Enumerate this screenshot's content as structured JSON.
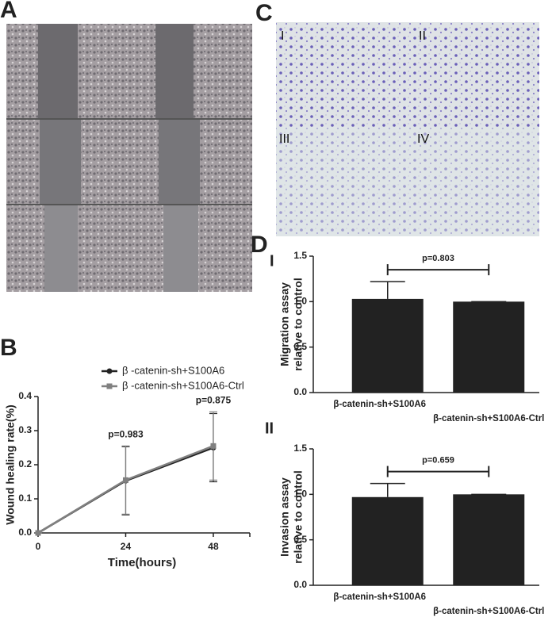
{
  "panel_labels": {
    "a": "A",
    "b": "B",
    "c": "C",
    "d": "D",
    "d1": "I",
    "d2": "II"
  },
  "image_c_labels": [
    "I",
    "II",
    "III",
    "IV"
  ],
  "chart_data": [
    {
      "type": "line",
      "xlabel": "Time(hours)",
      "ylabel": "Wound healing rate(%)",
      "x": [
        0,
        24,
        48
      ],
      "xlim": [
        0,
        58
      ],
      "xticks": [
        0,
        24,
        48
      ],
      "ylim": [
        0,
        0.4
      ],
      "yticks": [
        {
          "value": 0,
          "label": "0.0"
        },
        0.1,
        0.2,
        0.3,
        0.4
      ],
      "series": [
        {
          "name": "β -catenin-sh+S100A6",
          "color": "#222222",
          "marker": "circle",
          "values": [
            0,
            0.153,
            0.25
          ],
          "errors": [
            0,
            0.1,
            0.1
          ]
        },
        {
          "name": "β -catenin-sh+S100A6-Ctrl",
          "color": "#808080",
          "marker": "square",
          "values": [
            0,
            0.155,
            0.255
          ],
          "errors": [
            0,
            0.1,
            0.1
          ]
        }
      ],
      "annotations": [
        "p=0.983",
        "p=0.875"
      ]
    },
    {
      "type": "bar",
      "ylabel": [
        "Migration assay",
        "relative to control"
      ],
      "categories": [
        "β-catenin-sh+S100A6",
        "β-catenin-sh+S100A6-Ctrl"
      ],
      "values": [
        1.03,
        1.0
      ],
      "errors": [
        0.19,
        0
      ],
      "color": "#222222",
      "ylim": [
        0,
        1.5
      ],
      "yticks": [
        {
          "value": 0,
          "label": "0.0"
        },
        0.5,
        {
          "value": 1,
          "label": "1.0"
        },
        1.5
      ],
      "p_value_label": "p=0.803"
    },
    {
      "type": "bar",
      "ylabel": [
        "Invasion assay",
        "relative to control"
      ],
      "categories": [
        "β-catenin-sh+S100A6",
        "β-catenin-sh+S100A6-Ctrl"
      ],
      "values": [
        0.97,
        1.0
      ],
      "errors": [
        0.15,
        0
      ],
      "color": "#222222",
      "ylim": [
        0,
        1.5
      ],
      "yticks": [
        {
          "value": 0,
          "label": "0.0"
        },
        0.5,
        {
          "value": 1,
          "label": "1.0"
        },
        1.5
      ],
      "p_value_label": "p=0.659"
    }
  ]
}
